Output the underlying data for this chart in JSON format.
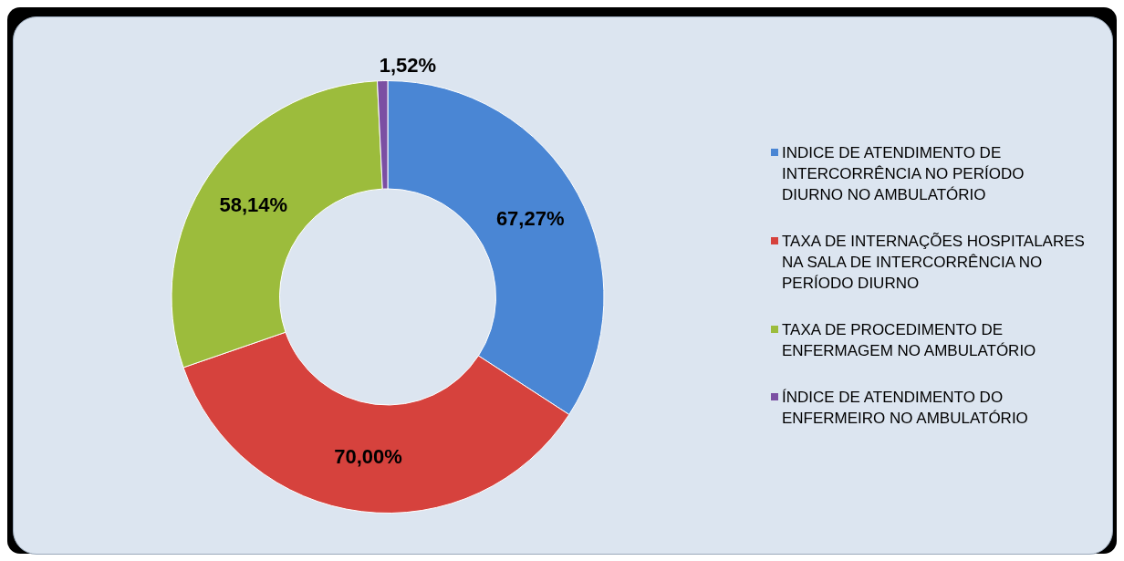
{
  "chart_data": {
    "type": "donut",
    "categories": [
      "INDICE DE ATENDIMENTO DE INTERCORRÊNCIA NO PERÍODO DIURNO NO AMBULATÓRIO",
      "TAXA DE INTERNAÇÕES HOSPITALARES NA SALA DE INTERCORRÊNCIA NO PERÍODO DIURNO",
      "TAXA DE PROCEDIMENTO DE ENFERMAGEM NO AMBULATÓRIO",
      "ÍNDICE DE ATENDIMENTO DO ENFERMEIRO NO AMBULATÓRIO"
    ],
    "values": [
      67.27,
      70.0,
      58.14,
      1.52
    ],
    "value_labels": [
      "67,27%",
      "70,00%",
      "58,14%",
      "1,52%"
    ],
    "colors": [
      "#4a86d4",
      "#d6423d",
      "#9cbc3c",
      "#7b4fa3"
    ],
    "legend": "right"
  }
}
